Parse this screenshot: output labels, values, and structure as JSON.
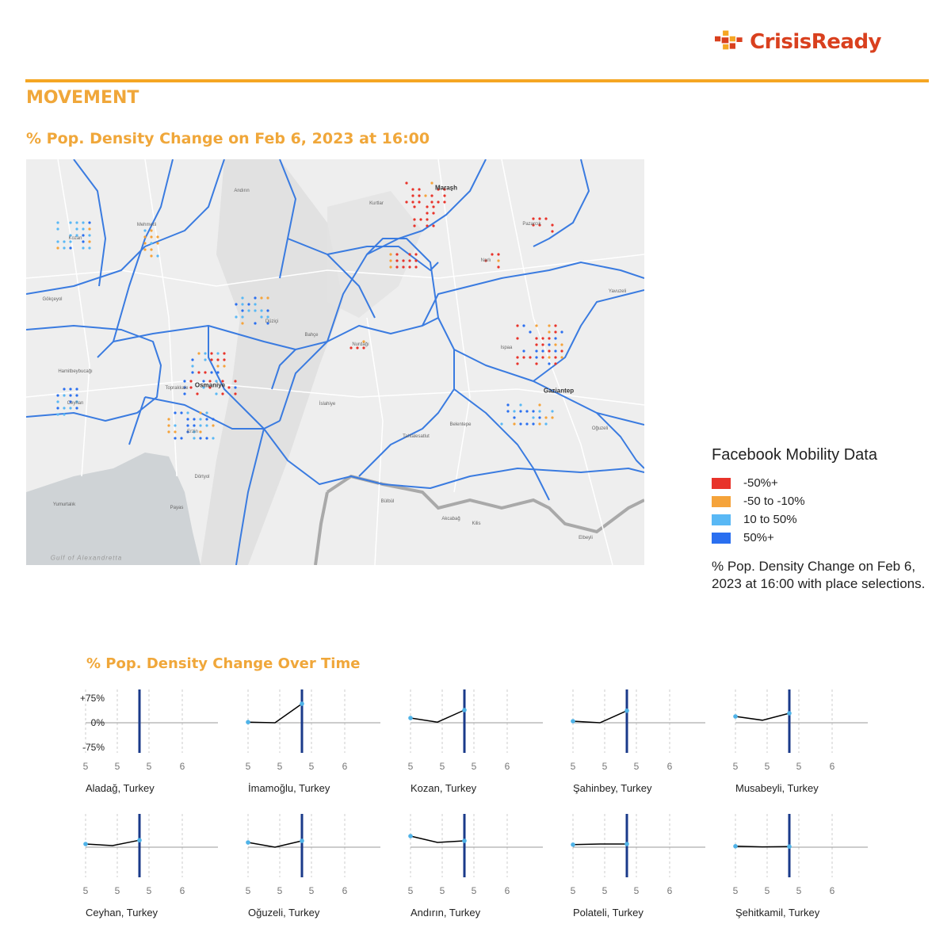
{
  "brand": {
    "name": "CrisisReady",
    "color": "#d9401e",
    "accent": "#f5a623",
    "logo_icon": "crisisready-cross-icon"
  },
  "section": {
    "title": "MOVEMENT",
    "color": "#f0a73a"
  },
  "map": {
    "title": "% Pop. Density Change on Feb 6, 2023 at 16:00",
    "labels": {
      "maras": "Maraşh",
      "osmaniye": "Osmaniye",
      "gaziantep": "Gaziantep",
      "kozan": "Kozan",
      "ceyhan": "Ceyhan",
      "andirin": "Andırın",
      "duzici": "Düziçi",
      "bahce": "Bahçe",
      "nurdagi": "Nurdağı",
      "islahiye": "İslahiye",
      "pazarcik": "Pazarcık",
      "dortyol": "Dörtyol",
      "erzin": "Erzin",
      "toprakkale": "Toprakkale",
      "kilis": "Kilis",
      "gulf": "Gulf of Alexandretta",
      "mehmetli": "Mehmetli",
      "hamitbeybucagi": "Hamitbeybucağı",
      "payas": "Payas",
      "belentepe": "Belentepe",
      "yavuzeli": "Yavuzeli",
      "oguzeli": "Oğuzeli",
      "gokceyol": "Gökçeyol",
      "yumurtalik": "Yumurtalık",
      "tahtalesatlut": "Tahtalesatlut",
      "bulbul": "Bülbül",
      "akcabag": "Akcabağ",
      "ispaa": "Ispaa",
      "kurtlar": "Kurtlar",
      "elbeyli": "Elbeyli",
      "narli": "Narlı"
    }
  },
  "legend": {
    "title": "Facebook Mobility Data",
    "items": [
      {
        "label": "-50%+",
        "color": "#e8332a"
      },
      {
        "label": "-50 to -10%",
        "color": "#f5a33a"
      },
      {
        "label": "10 to 50%",
        "color": "#59b8f5"
      },
      {
        "label": "50%+",
        "color": "#2a6ff0"
      }
    ],
    "description": "% Pop. Density Change on Feb 6, 2023 at 16:00 with place selections."
  },
  "chart_section": {
    "title": "% Pop. Density Change Over Time"
  },
  "chart_data": {
    "type": "line",
    "yticks": [
      "+75%",
      "0%",
      "-75%"
    ],
    "ylim": [
      -75,
      75
    ],
    "xticks": [
      "5",
      "5",
      "5",
      "6"
    ],
    "line_color": "#000000",
    "marker_color": "#4fb3e8",
    "current_time_color": "#1a3a8a",
    "small_multiples": [
      {
        "name": "Aladağ, Turkey",
        "values": []
      },
      {
        "name": "İmamoğlu, Turkey",
        "values": [
          2,
          0,
          60
        ]
      },
      {
        "name": "Kozan, Turkey",
        "values": [
          15,
          2,
          40
        ]
      },
      {
        "name": "Şahinbey, Turkey",
        "values": [
          5,
          0,
          38
        ]
      },
      {
        "name": "Musabeyli, Turkey",
        "values": [
          20,
          8,
          30
        ]
      },
      {
        "name": "Ceyhan, Turkey",
        "values": [
          10,
          5,
          22
        ]
      },
      {
        "name": "Oğuzeli, Turkey",
        "values": [
          15,
          0,
          20
        ]
      },
      {
        "name": "Andırın, Turkey",
        "values": [
          35,
          15,
          20
        ]
      },
      {
        "name": "Polateli, Turkey",
        "values": [
          8,
          10,
          10
        ]
      },
      {
        "name": "Şehitkamil, Turkey",
        "values": [
          3,
          1,
          2
        ]
      }
    ]
  }
}
